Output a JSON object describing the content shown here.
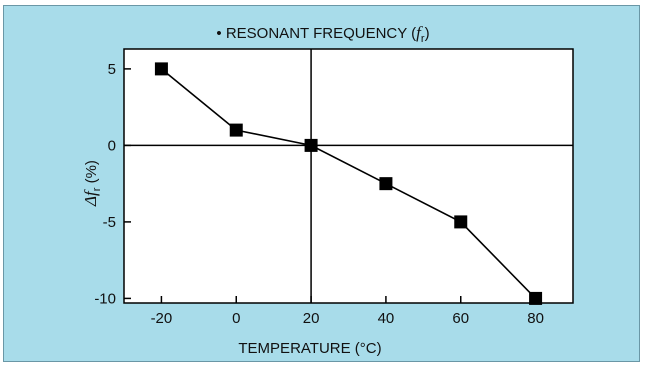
{
  "chart_data": {
    "type": "line",
    "title_prefix": "• RESONANT FREQUENCY (",
    "title_symbol": "f",
    "title_subscript": "r",
    "title_suffix": ")",
    "xlabel": "TEMPERATURE (°C)",
    "ylabel_symbol": "Δf",
    "ylabel_subscript": "r",
    "ylabel_suffix": " (%)",
    "x": [
      -20,
      0,
      20,
      40,
      60,
      80
    ],
    "y": [
      5,
      1,
      0,
      -2.5,
      -5,
      -10
    ],
    "xticks": [
      -20,
      0,
      20,
      40,
      60,
      80
    ],
    "yticks": [
      5,
      0,
      -5,
      -10
    ],
    "xlim": [
      -30,
      90
    ],
    "ylim": [
      -10.3,
      6.3
    ],
    "reference_lines": {
      "x": 20,
      "y": 0
    },
    "marker": "square",
    "grid": false,
    "colors": {
      "background": "#a8dcea",
      "plot_area": "#ffffff",
      "series": "#000000"
    }
  }
}
